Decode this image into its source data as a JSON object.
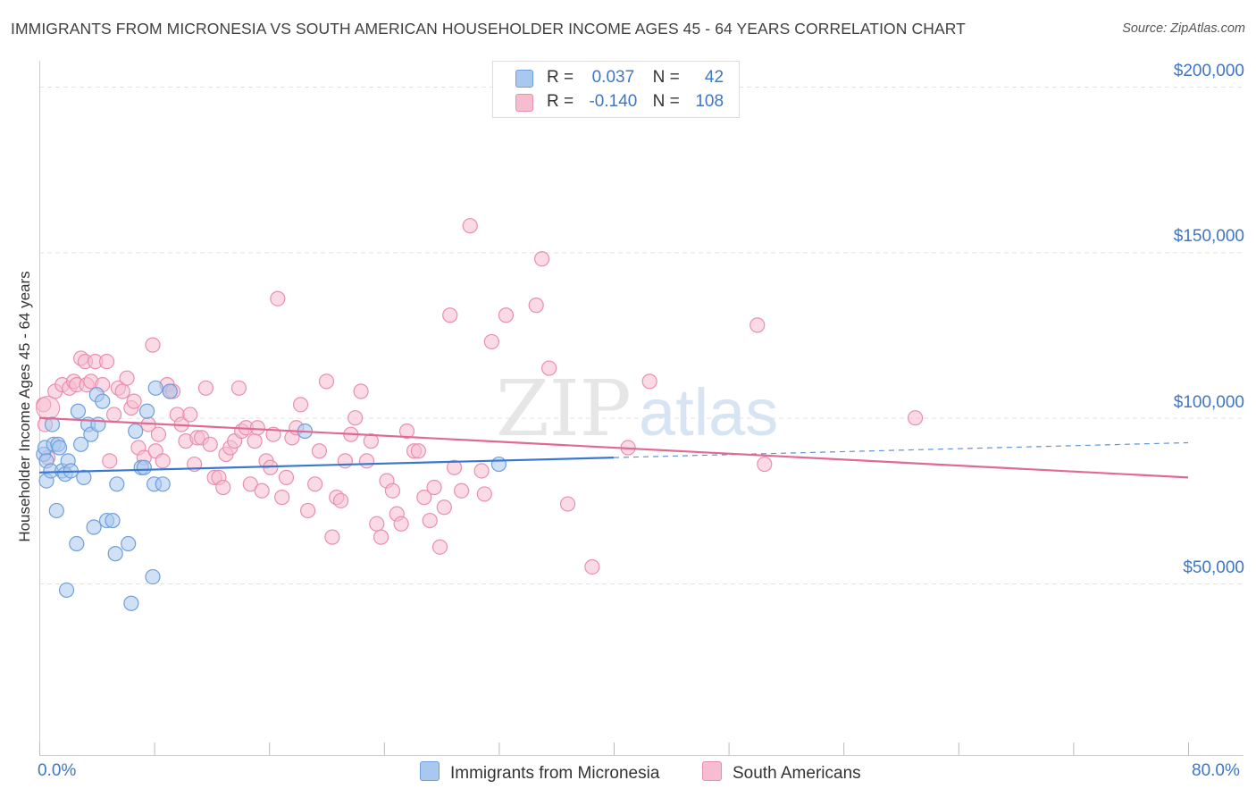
{
  "title": "IMMIGRANTS FROM MICRONESIA VS SOUTH AMERICAN HOUSEHOLDER INCOME AGES 45 - 64 YEARS CORRELATION CHART",
  "source": "Source: ZipAtlas.com",
  "watermark": {
    "zip": "ZIP",
    "atlas": "atlas"
  },
  "legend": {
    "rows": [
      {
        "r_label": "R =",
        "r_value": "0.037",
        "n_label": "N =",
        "n_value": "42"
      },
      {
        "r_label": "R =",
        "r_value": "-0.140",
        "n_label": "N =",
        "n_value": "108"
      }
    ]
  },
  "colors": {
    "series1_fill": "#a9c8ef",
    "series1_stroke": "#6f9fdc",
    "series1_line": "#3a78d0",
    "series2_fill": "#f6bdd0",
    "series2_stroke": "#e98fae",
    "series2_line": "#e16a95",
    "tick_text": "#3d76c6",
    "grid": "#e2e2e2"
  },
  "chart_data": {
    "type": "scatter",
    "title": "IMMIGRANTS FROM MICRONESIA VS SOUTH AMERICAN HOUSEHOLDER INCOME AGES 45 - 64 YEARS CORRELATION CHART",
    "xlabel": "",
    "ylabel": "Householder Income Ages 45 - 64 years",
    "xlim": [
      0,
      80
    ],
    "ylim": [
      0,
      205000
    ],
    "x_tick_labels": [
      "0.0%",
      "80.0%"
    ],
    "y_ticks": [
      {
        "value": 50000,
        "label": "$50,000"
      },
      {
        "value": 100000,
        "label": "$100,000"
      },
      {
        "value": 150000,
        "label": "$150,000"
      },
      {
        "value": 200000,
        "label": "$200,000"
      }
    ],
    "grid": "horizontal dashed",
    "legend_position": "top-center",
    "series": [
      {
        "name": "Immigrants from Micronesia",
        "r": 0.037,
        "n": 42,
        "trend": {
          "x0": 0,
          "y0": 83500,
          "x1": 40,
          "y1": 88000,
          "dashed_to_x": 80,
          "dashed_to_y": 92500
        },
        "points": [
          [
            0.3,
            89000
          ],
          [
            0.4,
            91000
          ],
          [
            0.5,
            87000
          ],
          [
            0.5,
            81000
          ],
          [
            0.8,
            84000
          ],
          [
            0.9,
            98000
          ],
          [
            1.0,
            92000
          ],
          [
            1.2,
            72000
          ],
          [
            1.3,
            92000
          ],
          [
            1.4,
            91000
          ],
          [
            1.6,
            84000
          ],
          [
            1.8,
            83000
          ],
          [
            1.9,
            48000
          ],
          [
            2.0,
            87000
          ],
          [
            2.2,
            84000
          ],
          [
            2.6,
            62000
          ],
          [
            2.7,
            102000
          ],
          [
            2.9,
            92000
          ],
          [
            3.1,
            82000
          ],
          [
            3.4,
            98000
          ],
          [
            3.6,
            95000
          ],
          [
            3.8,
            67000
          ],
          [
            4.0,
            107000
          ],
          [
            4.1,
            98000
          ],
          [
            4.4,
            105000
          ],
          [
            4.7,
            69000
          ],
          [
            5.1,
            69000
          ],
          [
            5.3,
            59000
          ],
          [
            5.4,
            80000
          ],
          [
            6.2,
            62000
          ],
          [
            6.4,
            44000
          ],
          [
            6.7,
            96000
          ],
          [
            7.1,
            85000
          ],
          [
            7.3,
            85000
          ],
          [
            7.5,
            102000
          ],
          [
            7.9,
            52000
          ],
          [
            8.0,
            80000
          ],
          [
            8.1,
            109000
          ],
          [
            8.6,
            80000
          ],
          [
            9.1,
            108000
          ],
          [
            18.5,
            96000
          ],
          [
            32.0,
            86000
          ]
        ]
      },
      {
        "name": "South Americans",
        "r": -0.14,
        "n": 108,
        "trend": {
          "x0": 0,
          "y0": 100000,
          "x1": 80,
          "y1": 82000
        },
        "points": [
          [
            0.3,
            104000
          ],
          [
            0.4,
            98000
          ],
          [
            0.6,
            88000
          ],
          [
            1.1,
            108000
          ],
          [
            1.6,
            110000
          ],
          [
            2.1,
            109000
          ],
          [
            2.4,
            111000
          ],
          [
            2.6,
            110000
          ],
          [
            2.9,
            118000
          ],
          [
            3.2,
            117000
          ],
          [
            3.3,
            110000
          ],
          [
            3.6,
            111000
          ],
          [
            3.9,
            117000
          ],
          [
            4.4,
            110000
          ],
          [
            4.7,
            117000
          ],
          [
            4.9,
            87000
          ],
          [
            5.2,
            101000
          ],
          [
            5.5,
            109000
          ],
          [
            5.8,
            108000
          ],
          [
            6.1,
            112000
          ],
          [
            6.4,
            103000
          ],
          [
            6.6,
            105000
          ],
          [
            6.9,
            91000
          ],
          [
            7.3,
            88000
          ],
          [
            7.6,
            98000
          ],
          [
            7.9,
            122000
          ],
          [
            8.1,
            90000
          ],
          [
            8.3,
            95000
          ],
          [
            8.6,
            87000
          ],
          [
            8.9,
            110000
          ],
          [
            9.1,
            108000
          ],
          [
            9.3,
            108000
          ],
          [
            9.6,
            101000
          ],
          [
            9.9,
            98000
          ],
          [
            10.2,
            93000
          ],
          [
            10.5,
            101000
          ],
          [
            10.8,
            86000
          ],
          [
            11.0,
            94000
          ],
          [
            11.3,
            94000
          ],
          [
            11.6,
            109000
          ],
          [
            11.9,
            92000
          ],
          [
            12.2,
            82000
          ],
          [
            12.5,
            82000
          ],
          [
            12.8,
            79000
          ],
          [
            13.0,
            89000
          ],
          [
            13.3,
            91000
          ],
          [
            13.6,
            93000
          ],
          [
            13.9,
            109000
          ],
          [
            14.1,
            96000
          ],
          [
            14.4,
            97000
          ],
          [
            14.7,
            80000
          ],
          [
            15.0,
            93000
          ],
          [
            15.2,
            97000
          ],
          [
            15.5,
            78000
          ],
          [
            15.8,
            87000
          ],
          [
            16.1,
            85000
          ],
          [
            16.3,
            95000
          ],
          [
            16.6,
            136000
          ],
          [
            16.9,
            76000
          ],
          [
            17.2,
            82000
          ],
          [
            17.6,
            94000
          ],
          [
            17.9,
            97000
          ],
          [
            18.2,
            104000
          ],
          [
            18.7,
            72000
          ],
          [
            19.2,
            80000
          ],
          [
            19.5,
            90000
          ],
          [
            20.0,
            111000
          ],
          [
            20.4,
            64000
          ],
          [
            20.7,
            76000
          ],
          [
            21.0,
            75000
          ],
          [
            21.3,
            87000
          ],
          [
            21.7,
            95000
          ],
          [
            22.0,
            100000
          ],
          [
            22.4,
            108000
          ],
          [
            22.8,
            87000
          ],
          [
            23.1,
            93000
          ],
          [
            23.5,
            68000
          ],
          [
            23.8,
            64000
          ],
          [
            24.2,
            81000
          ],
          [
            24.6,
            78000
          ],
          [
            24.9,
            71000
          ],
          [
            25.2,
            68000
          ],
          [
            25.6,
            96000
          ],
          [
            26.1,
            90000
          ],
          [
            26.4,
            90000
          ],
          [
            26.8,
            76000
          ],
          [
            27.2,
            69000
          ],
          [
            27.5,
            79000
          ],
          [
            27.9,
            61000
          ],
          [
            28.2,
            73000
          ],
          [
            28.6,
            131000
          ],
          [
            28.9,
            85000
          ],
          [
            29.4,
            78000
          ],
          [
            30.0,
            158000
          ],
          [
            30.8,
            84000
          ],
          [
            31.0,
            77000
          ],
          [
            31.5,
            123000
          ],
          [
            32.5,
            131000
          ],
          [
            34.6,
            134000
          ],
          [
            35.0,
            148000
          ],
          [
            35.5,
            115000
          ],
          [
            36.8,
            74000
          ],
          [
            38.5,
            55000
          ],
          [
            41.0,
            91000
          ],
          [
            42.5,
            111000
          ],
          [
            50.0,
            128000
          ],
          [
            50.5,
            86000
          ],
          [
            61.0,
            100000
          ]
        ]
      }
    ]
  },
  "bottom_legend": [
    "Immigrants from Micronesia",
    "South Americans"
  ]
}
